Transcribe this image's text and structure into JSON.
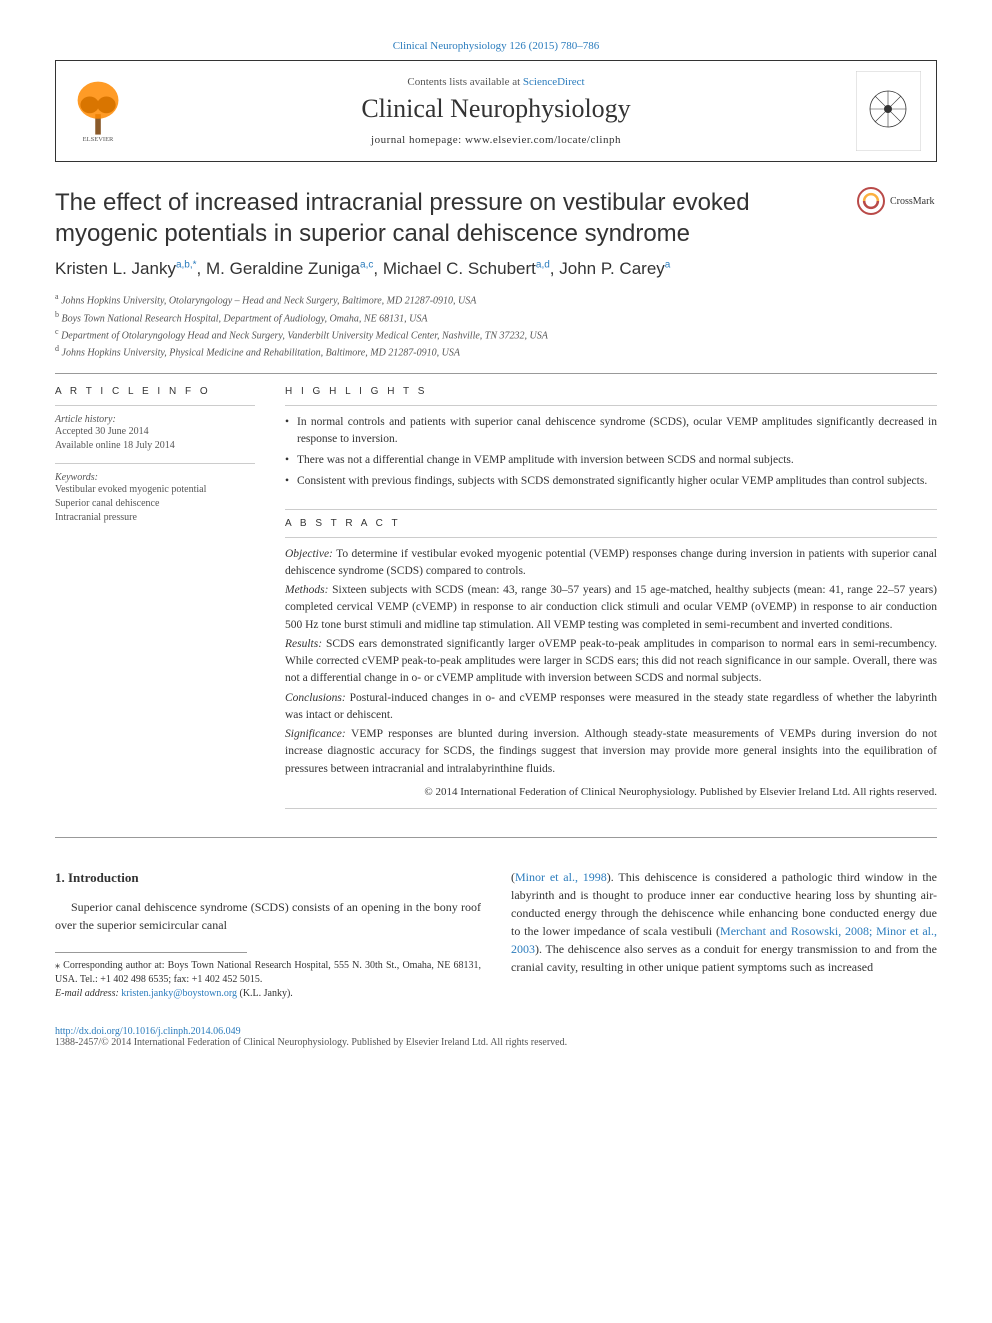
{
  "top_citation": "Clinical Neurophysiology 126 (2015) 780–786",
  "header": {
    "contents_prefix": "Contents lists available at ",
    "contents_link": "ScienceDirect",
    "journal_name": "Clinical Neurophysiology",
    "homepage": "journal homepage: www.elsevier.com/locate/clinph"
  },
  "crossmark_label": "CrossMark",
  "title": "The effect of increased intracranial pressure on vestibular evoked myogenic potentials in superior canal dehiscence syndrome",
  "authors": [
    {
      "name": "Kristen L. Janky",
      "sup": "a,b,*"
    },
    {
      "name": "M. Geraldine Zuniga",
      "sup": "a,c"
    },
    {
      "name": "Michael C. Schubert",
      "sup": "a,d"
    },
    {
      "name": "John P. Carey",
      "sup": "a"
    }
  ],
  "affiliations": [
    {
      "sup": "a",
      "text": "Johns Hopkins University, Otolaryngology – Head and Neck Surgery, Baltimore, MD 21287-0910, USA"
    },
    {
      "sup": "b",
      "text": "Boys Town National Research Hospital, Department of Audiology, Omaha, NE 68131, USA"
    },
    {
      "sup": "c",
      "text": "Department of Otolaryngology Head and Neck Surgery, Vanderbilt University Medical Center, Nashville, TN 37232, USA"
    },
    {
      "sup": "d",
      "text": "Johns Hopkins University, Physical Medicine and Rehabilitation, Baltimore, MD 21287-0910, USA"
    }
  ],
  "article_info": {
    "heading": "A R T I C L E   I N F O",
    "history_head": "Article history:",
    "accepted": "Accepted 30 June 2014",
    "available": "Available online 18 July 2014",
    "keywords_head": "Keywords:",
    "keywords": [
      "Vestibular evoked myogenic potential",
      "Superior canal dehiscence",
      "Intracranial pressure"
    ]
  },
  "highlights": {
    "heading": "H I G H L I G H T S",
    "items": [
      "In normal controls and patients with superior canal dehiscence syndrome (SCDS), ocular VEMP amplitudes significantly decreased in response to inversion.",
      "There was not a differential change in VEMP amplitude with inversion between SCDS and normal subjects.",
      "Consistent with previous findings, subjects with SCDS demonstrated significantly higher ocular VEMP amplitudes than control subjects."
    ]
  },
  "abstract": {
    "heading": "A B S T R A C T",
    "objective_lead": "Objective:",
    "objective": " To determine if vestibular evoked myogenic potential (VEMP) responses change during inversion in patients with superior canal dehiscence syndrome (SCDS) compared to controls.",
    "methods_lead": "Methods:",
    "methods": " Sixteen subjects with SCDS (mean: 43, range 30–57 years) and 15 age-matched, healthy subjects (mean: 41, range 22–57 years) completed cervical VEMP (cVEMP) in response to air conduction click stimuli and ocular VEMP (oVEMP) in response to air conduction 500 Hz tone burst stimuli and midline tap stimulation. All VEMP testing was completed in semi-recumbent and inverted conditions.",
    "results_lead": "Results:",
    "results": " SCDS ears demonstrated significantly larger oVEMP peak-to-peak amplitudes in comparison to normal ears in semi-recumbency. While corrected cVEMP peak-to-peak amplitudes were larger in SCDS ears; this did not reach significance in our sample. Overall, there was not a differential change in o- or cVEMP amplitude with inversion between SCDS and normal subjects.",
    "conclusions_lead": "Conclusions:",
    "conclusions": " Postural-induced changes in o- and cVEMP responses were measured in the steady state regardless of whether the labyrinth was intact or dehiscent.",
    "significance_lead": "Significance:",
    "significance": " VEMP responses are blunted during inversion. Although steady-state measurements of VEMPs during inversion do not increase diagnostic accuracy for SCDS, the findings suggest that inversion may provide more general insights into the equilibration of pressures between intracranial and intralabyrinthine fluids.",
    "copyright": "© 2014 International Federation of Clinical Neurophysiology. Published by Elsevier Ireland Ltd. All rights reserved."
  },
  "intro": {
    "heading": "1. Introduction",
    "col1": "Superior canal dehiscence syndrome (SCDS) consists of an opening in the bony roof over the superior semicircular canal",
    "col2_pre": "(",
    "col2_ref1": "Minor et al., 1998",
    "col2_mid1": "). This dehiscence is considered a pathologic third window in the labyrinth and is thought to produce inner ear conductive hearing loss by shunting air-conducted energy through the dehiscence while enhancing bone conducted energy due to the lower impedance of scala vestibuli (",
    "col2_ref2": "Merchant and Rosowski, 2008; Minor et al., 2003",
    "col2_mid2": "). The dehiscence also serves as a conduit for energy transmission to and from the cranial cavity, resulting in other unique patient symptoms such as increased"
  },
  "footnotes": {
    "corr": "⁎ Corresponding author at: Boys Town National Research Hospital, 555 N. 30th St., Omaha, NE 68131, USA. Tel.: +1 402 498 6535; fax: +1 402 452 5015.",
    "email_lead": "E-mail address: ",
    "email": "kristen.janky@boystown.org",
    "email_suffix": " (K.L. Janky)."
  },
  "bottom": {
    "doi": "http://dx.doi.org/10.1016/j.clinph.2014.06.049",
    "issn_line": "1388-2457/© 2014 International Federation of Clinical Neurophysiology. Published by Elsevier Ireland Ltd. All rights reserved."
  },
  "colors": {
    "link": "#2b7cbd",
    "text": "#333333",
    "rule": "#999999",
    "muted": "#555555"
  },
  "logos": {
    "elsevier_orange": "#ff8a00",
    "crossmark_ring": "#b94a48"
  }
}
